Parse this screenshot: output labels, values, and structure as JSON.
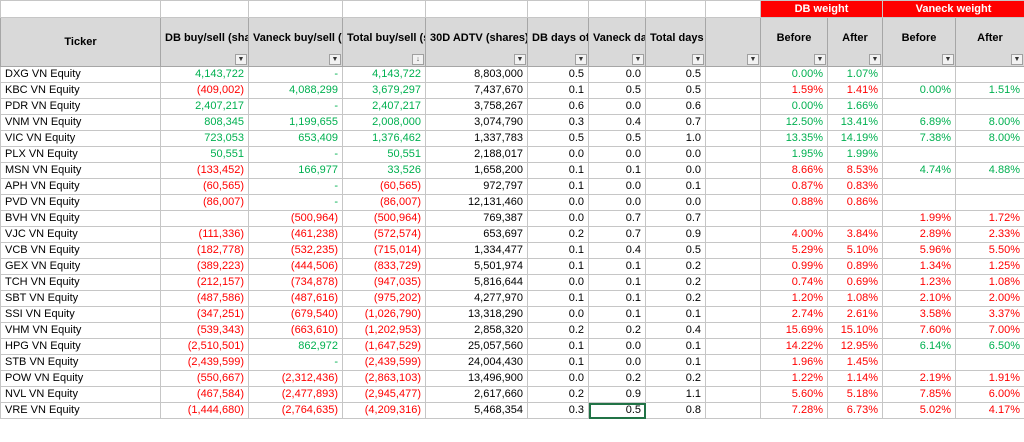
{
  "group_headers": {
    "db_weight": "DB weight",
    "vaneck_weight": "Vaneck weight"
  },
  "columns": {
    "ticker": "Ticker",
    "db_buysell": "DB buy/sell (shares)",
    "vaneck_buysell": "Vaneck buy/sell (shares)",
    "total_buysell": "Total buy/sell (shares)",
    "adtv": "30D ADTV (shares)",
    "db_days": "DB days of trading",
    "vaneck_days": "Vaneck days of trading",
    "total_days": "Total days of trading",
    "blank": "",
    "db_before": "Before",
    "db_after": "After",
    "v_before": "Before",
    "v_after": "After"
  },
  "colors": {
    "positive": "#00b050",
    "negative": "#ff0000",
    "header_bg": "#d9d9d9",
    "group_bg": "#ff0000"
  },
  "rows": [
    {
      "ticker": "DXG VN Equity",
      "db": "4,143,722",
      "db_c": "g",
      "vn": "-",
      "vn_c": "g",
      "tot": "4,143,722",
      "tot_c": "g",
      "adtv": "8,803,000",
      "dbd": "0.5",
      "vnd": "0.0",
      "td": "0.5",
      "dbb": "0.00%",
      "dba": "1.07%",
      "db_wc": "g",
      "vb": "",
      "va": "",
      "v_wc": "g"
    },
    {
      "ticker": "KBC VN Equity",
      "db": "(409,002)",
      "db_c": "rd",
      "vn": "4,088,299",
      "vn_c": "g",
      "tot": "3,679,297",
      "tot_c": "g",
      "adtv": "7,437,670",
      "dbd": "0.1",
      "vnd": "0.5",
      "td": "0.5",
      "dbb": "1.59%",
      "dba": "1.41%",
      "db_wc": "rd",
      "vb": "0.00%",
      "va": "1.51%",
      "v_wc": "g"
    },
    {
      "ticker": "PDR VN Equity",
      "db": "2,407,217",
      "db_c": "g",
      "vn": "-",
      "vn_c": "g",
      "tot": "2,407,217",
      "tot_c": "g",
      "adtv": "3,758,267",
      "dbd": "0.6",
      "vnd": "0.0",
      "td": "0.6",
      "dbb": "0.00%",
      "dba": "1.66%",
      "db_wc": "g",
      "vb": "",
      "va": "",
      "v_wc": "g"
    },
    {
      "ticker": "VNM VN Equity",
      "db": "808,345",
      "db_c": "g",
      "vn": "1,199,655",
      "vn_c": "g",
      "tot": "2,008,000",
      "tot_c": "g",
      "adtv": "3,074,790",
      "dbd": "0.3",
      "vnd": "0.4",
      "td": "0.7",
      "dbb": "12.50%",
      "dba": "13.41%",
      "db_wc": "g",
      "vb": "6.89%",
      "va": "8.00%",
      "v_wc": "g"
    },
    {
      "ticker": "VIC VN Equity",
      "db": "723,053",
      "db_c": "g",
      "vn": "653,409",
      "vn_c": "g",
      "tot": "1,376,462",
      "tot_c": "g",
      "adtv": "1,337,783",
      "dbd": "0.5",
      "vnd": "0.5",
      "td": "1.0",
      "dbb": "13.35%",
      "dba": "14.19%",
      "db_wc": "g",
      "vb": "7.38%",
      "va": "8.00%",
      "v_wc": "g"
    },
    {
      "ticker": "PLX VN Equity",
      "db": "50,551",
      "db_c": "g",
      "vn": "-",
      "vn_c": "g",
      "tot": "50,551",
      "tot_c": "g",
      "adtv": "2,188,017",
      "dbd": "0.0",
      "vnd": "0.0",
      "td": "0.0",
      "dbb": "1.95%",
      "dba": "1.99%",
      "db_wc": "g",
      "vb": "",
      "va": "",
      "v_wc": "g"
    },
    {
      "ticker": "MSN VN Equity",
      "db": "(133,452)",
      "db_c": "rd",
      "vn": "166,977",
      "vn_c": "g",
      "tot": "33,526",
      "tot_c": "g",
      "adtv": "1,658,200",
      "dbd": "0.1",
      "vnd": "0.1",
      "td": "0.0",
      "dbb": "8.66%",
      "dba": "8.53%",
      "db_wc": "rd",
      "vb": "4.74%",
      "va": "4.88%",
      "v_wc": "g"
    },
    {
      "ticker": "APH VN Equity",
      "db": "(60,565)",
      "db_c": "rd",
      "vn": "-",
      "vn_c": "g",
      "tot": "(60,565)",
      "tot_c": "rd",
      "adtv": "972,797",
      "dbd": "0.1",
      "vnd": "0.0",
      "td": "0.1",
      "dbb": "0.87%",
      "dba": "0.83%",
      "db_wc": "rd",
      "vb": "",
      "va": "",
      "v_wc": "g"
    },
    {
      "ticker": "PVD VN Equity",
      "db": "(86,007)",
      "db_c": "rd",
      "vn": "-",
      "vn_c": "g",
      "tot": "(86,007)",
      "tot_c": "rd",
      "adtv": "12,131,460",
      "dbd": "0.0",
      "vnd": "0.0",
      "td": "0.0",
      "dbb": "0.88%",
      "dba": "0.86%",
      "db_wc": "rd",
      "vb": "",
      "va": "",
      "v_wc": "g"
    },
    {
      "ticker": "BVH VN Equity",
      "db": "",
      "db_c": "rd",
      "vn": "(500,964)",
      "vn_c": "rd",
      "tot": "(500,964)",
      "tot_c": "rd",
      "adtv": "769,387",
      "dbd": "0.0",
      "vnd": "0.7",
      "td": "0.7",
      "dbb": "",
      "dba": "",
      "db_wc": "rd",
      "vb": "1.99%",
      "va": "1.72%",
      "v_wc": "rd"
    },
    {
      "ticker": "VJC VN Equity",
      "db": "(111,336)",
      "db_c": "rd",
      "vn": "(461,238)",
      "vn_c": "rd",
      "tot": "(572,574)",
      "tot_c": "rd",
      "adtv": "653,697",
      "dbd": "0.2",
      "vnd": "0.7",
      "td": "0.9",
      "dbb": "4.00%",
      "dba": "3.84%",
      "db_wc": "rd",
      "vb": "2.89%",
      "va": "2.33%",
      "v_wc": "rd"
    },
    {
      "ticker": "VCB VN Equity",
      "db": "(182,778)",
      "db_c": "rd",
      "vn": "(532,235)",
      "vn_c": "rd",
      "tot": "(715,014)",
      "tot_c": "rd",
      "adtv": "1,334,477",
      "dbd": "0.1",
      "vnd": "0.4",
      "td": "0.5",
      "dbb": "5.29%",
      "dba": "5.10%",
      "db_wc": "rd",
      "vb": "5.96%",
      "va": "5.50%",
      "v_wc": "rd"
    },
    {
      "ticker": "GEX VN Equity",
      "db": "(389,223)",
      "db_c": "rd",
      "vn": "(444,506)",
      "vn_c": "rd",
      "tot": "(833,729)",
      "tot_c": "rd",
      "adtv": "5,501,974",
      "dbd": "0.1",
      "vnd": "0.1",
      "td": "0.2",
      "dbb": "0.99%",
      "dba": "0.89%",
      "db_wc": "rd",
      "vb": "1.34%",
      "va": "1.25%",
      "v_wc": "rd"
    },
    {
      "ticker": "TCH VN Equity",
      "db": "(212,157)",
      "db_c": "rd",
      "vn": "(734,878)",
      "vn_c": "rd",
      "tot": "(947,035)",
      "tot_c": "rd",
      "adtv": "5,816,644",
      "dbd": "0.0",
      "vnd": "0.1",
      "td": "0.2",
      "dbb": "0.74%",
      "dba": "0.69%",
      "db_wc": "rd",
      "vb": "1.23%",
      "va": "1.08%",
      "v_wc": "rd"
    },
    {
      "ticker": "SBT VN Equity",
      "db": "(487,586)",
      "db_c": "rd",
      "vn": "(487,616)",
      "vn_c": "rd",
      "tot": "(975,202)",
      "tot_c": "rd",
      "adtv": "4,277,970",
      "dbd": "0.1",
      "vnd": "0.1",
      "td": "0.2",
      "dbb": "1.20%",
      "dba": "1.08%",
      "db_wc": "rd",
      "vb": "2.10%",
      "va": "2.00%",
      "v_wc": "rd"
    },
    {
      "ticker": "SSI VN Equity",
      "db": "(347,251)",
      "db_c": "rd",
      "vn": "(679,540)",
      "vn_c": "rd",
      "tot": "(1,026,790)",
      "tot_c": "rd",
      "adtv": "13,318,290",
      "dbd": "0.0",
      "vnd": "0.1",
      "td": "0.1",
      "dbb": "2.74%",
      "dba": "2.61%",
      "db_wc": "rd",
      "vb": "3.58%",
      "va": "3.37%",
      "v_wc": "rd"
    },
    {
      "ticker": "VHM VN Equity",
      "db": "(539,343)",
      "db_c": "rd",
      "vn": "(663,610)",
      "vn_c": "rd",
      "tot": "(1,202,953)",
      "tot_c": "rd",
      "adtv": "2,858,320",
      "dbd": "0.2",
      "vnd": "0.2",
      "td": "0.4",
      "dbb": "15.69%",
      "dba": "15.10%",
      "db_wc": "rd",
      "vb": "7.60%",
      "va": "7.00%",
      "v_wc": "rd"
    },
    {
      "ticker": "HPG VN Equity",
      "db": "(2,510,501)",
      "db_c": "rd",
      "vn": "862,972",
      "vn_c": "g",
      "tot": "(1,647,529)",
      "tot_c": "rd",
      "adtv": "25,057,560",
      "dbd": "0.1",
      "vnd": "0.0",
      "td": "0.1",
      "dbb": "14.22%",
      "dba": "12.95%",
      "db_wc": "rd",
      "vb": "6.14%",
      "va": "6.50%",
      "v_wc": "g"
    },
    {
      "ticker": "STB VN Equity",
      "db": "(2,439,599)",
      "db_c": "rd",
      "vn": "-",
      "vn_c": "g",
      "tot": "(2,439,599)",
      "tot_c": "rd",
      "adtv": "24,004,430",
      "dbd": "0.1",
      "vnd": "0.0",
      "td": "0.1",
      "dbb": "1.96%",
      "dba": "1.45%",
      "db_wc": "rd",
      "vb": "",
      "va": "",
      "v_wc": "rd"
    },
    {
      "ticker": "POW VN Equity",
      "db": "(550,667)",
      "db_c": "rd",
      "vn": "(2,312,436)",
      "vn_c": "rd",
      "tot": "(2,863,103)",
      "tot_c": "rd",
      "adtv": "13,496,900",
      "dbd": "0.0",
      "vnd": "0.2",
      "td": "0.2",
      "dbb": "1.22%",
      "dba": "1.14%",
      "db_wc": "rd",
      "vb": "2.19%",
      "va": "1.91%",
      "v_wc": "rd"
    },
    {
      "ticker": "NVL VN Equity",
      "db": "(467,584)",
      "db_c": "rd",
      "vn": "(2,477,893)",
      "vn_c": "rd",
      "tot": "(2,945,477)",
      "tot_c": "rd",
      "adtv": "2,617,660",
      "dbd": "0.2",
      "vnd": "0.9",
      "td": "1.1",
      "dbb": "5.60%",
      "dba": "5.18%",
      "db_wc": "rd",
      "vb": "7.85%",
      "va": "6.00%",
      "v_wc": "rd"
    },
    {
      "ticker": "VRE VN Equity",
      "db": "(1,444,680)",
      "db_c": "rd",
      "vn": "(2,764,635)",
      "vn_c": "rd",
      "tot": "(4,209,316)",
      "tot_c": "rd",
      "adtv": "5,468,354",
      "dbd": "0.3",
      "vnd": "0.5",
      "td": "0.8",
      "dbb": "7.28%",
      "dba": "6.73%",
      "db_wc": "rd",
      "vb": "5.02%",
      "va": "4.17%",
      "v_wc": "rd"
    }
  ]
}
